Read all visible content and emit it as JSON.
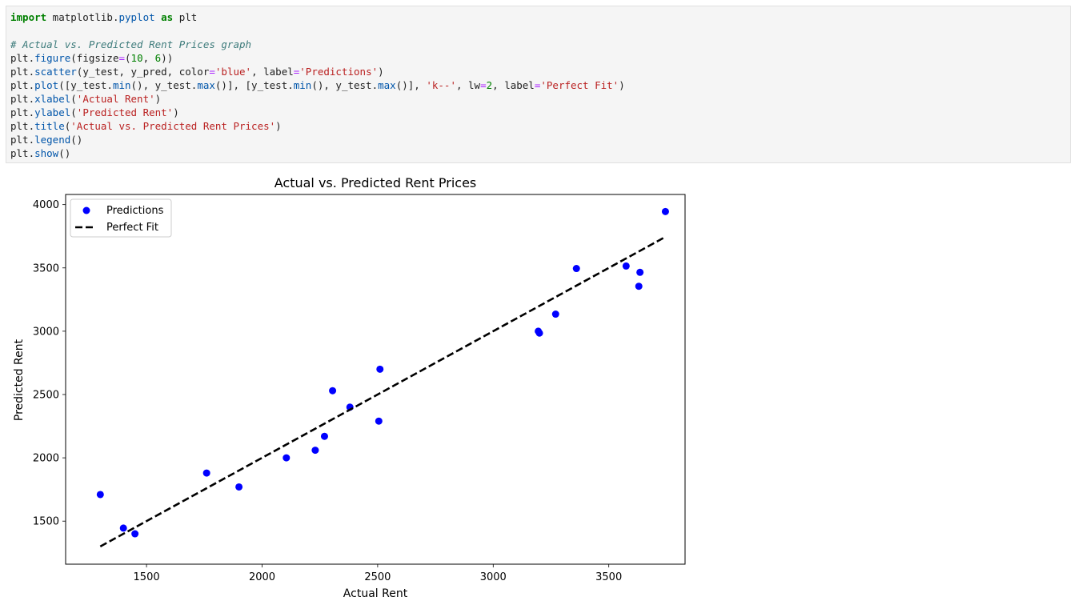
{
  "code_cell": {
    "lines": [
      [
        {
          "t": "import",
          "c": "kw"
        },
        {
          "t": " matplotlib.",
          "c": ""
        },
        {
          "t": "pyplot",
          "c": "fn"
        },
        {
          "t": " ",
          "c": ""
        },
        {
          "t": "as",
          "c": "kw"
        },
        {
          "t": " plt",
          "c": ""
        }
      ],
      [],
      [
        {
          "t": "# Actual vs. Predicted Rent Prices graph",
          "c": "cm"
        }
      ],
      [
        {
          "t": "plt.",
          "c": ""
        },
        {
          "t": "figure",
          "c": "fn"
        },
        {
          "t": "(figsize",
          "c": ""
        },
        {
          "t": "=",
          "c": "op"
        },
        {
          "t": "(",
          "c": ""
        },
        {
          "t": "10",
          "c": "num"
        },
        {
          "t": ", ",
          "c": ""
        },
        {
          "t": "6",
          "c": "num"
        },
        {
          "t": "))",
          "c": ""
        }
      ],
      [
        {
          "t": "plt.",
          "c": ""
        },
        {
          "t": "scatter",
          "c": "fn"
        },
        {
          "t": "(y_test, y_pred, color",
          "c": ""
        },
        {
          "t": "=",
          "c": "op"
        },
        {
          "t": "'blue'",
          "c": "str"
        },
        {
          "t": ", label",
          "c": ""
        },
        {
          "t": "=",
          "c": "op"
        },
        {
          "t": "'Predictions'",
          "c": "str"
        },
        {
          "t": ")",
          "c": ""
        }
      ],
      [
        {
          "t": "plt.",
          "c": ""
        },
        {
          "t": "plot",
          "c": "fn"
        },
        {
          "t": "([y_test.",
          "c": ""
        },
        {
          "t": "min",
          "c": "fn"
        },
        {
          "t": "(), y_test.",
          "c": ""
        },
        {
          "t": "max",
          "c": "fn"
        },
        {
          "t": "()], [y_test.",
          "c": ""
        },
        {
          "t": "min",
          "c": "fn"
        },
        {
          "t": "(), y_test.",
          "c": ""
        },
        {
          "t": "max",
          "c": "fn"
        },
        {
          "t": "()], ",
          "c": ""
        },
        {
          "t": "'k--'",
          "c": "str"
        },
        {
          "t": ", lw",
          "c": ""
        },
        {
          "t": "=",
          "c": "op"
        },
        {
          "t": "2",
          "c": "num"
        },
        {
          "t": ", label",
          "c": ""
        },
        {
          "t": "=",
          "c": "op"
        },
        {
          "t": "'Perfect Fit'",
          "c": "str"
        },
        {
          "t": ")",
          "c": ""
        }
      ],
      [
        {
          "t": "plt.",
          "c": ""
        },
        {
          "t": "xlabel",
          "c": "fn"
        },
        {
          "t": "(",
          "c": ""
        },
        {
          "t": "'Actual Rent'",
          "c": "str"
        },
        {
          "t": ")",
          "c": ""
        }
      ],
      [
        {
          "t": "plt.",
          "c": ""
        },
        {
          "t": "ylabel",
          "c": "fn"
        },
        {
          "t": "(",
          "c": ""
        },
        {
          "t": "'Predicted Rent'",
          "c": "str"
        },
        {
          "t": ")",
          "c": ""
        }
      ],
      [
        {
          "t": "plt.",
          "c": ""
        },
        {
          "t": "title",
          "c": "fn"
        },
        {
          "t": "(",
          "c": ""
        },
        {
          "t": "'Actual vs. Predicted Rent Prices'",
          "c": "str"
        },
        {
          "t": ")",
          "c": ""
        }
      ],
      [
        {
          "t": "plt.",
          "c": ""
        },
        {
          "t": "legend",
          "c": "fn"
        },
        {
          "t": "()",
          "c": ""
        }
      ],
      [
        {
          "t": "plt.",
          "c": ""
        },
        {
          "t": "show",
          "c": "fn"
        },
        {
          "t": "()",
          "c": ""
        }
      ]
    ]
  },
  "chart_data": {
    "type": "scatter",
    "title": "Actual vs. Predicted Rent Prices",
    "xlabel": "Actual Rent",
    "ylabel": "Predicted Rent",
    "xlim": [
      1150,
      3830
    ],
    "ylim": [
      1160,
      4080
    ],
    "xticks": [
      1500,
      2000,
      2500,
      3000,
      3500
    ],
    "yticks": [
      1500,
      2000,
      2500,
      3000,
      3500,
      4000
    ],
    "grid": false,
    "legend_position": "top-left",
    "series": [
      {
        "name": "Predictions",
        "color": "#0000ff",
        "marker": "circle",
        "x": [
          1300,
          1400,
          1450,
          1760,
          1900,
          2105,
          2230,
          2270,
          2305,
          2380,
          2505,
          2510,
          3195,
          3200,
          3270,
          3360,
          3575,
          3630,
          3635,
          3745
        ],
        "y": [
          1710,
          1445,
          1400,
          1880,
          1770,
          2000,
          2060,
          2170,
          2530,
          2400,
          2290,
          2700,
          3000,
          2985,
          3135,
          3495,
          3515,
          3355,
          3465,
          3945
        ]
      },
      {
        "name": "Perfect Fit",
        "color": "#000000",
        "style": "dashed",
        "x": [
          1300,
          3745
        ],
        "y": [
          1300,
          3745
        ]
      }
    ]
  }
}
